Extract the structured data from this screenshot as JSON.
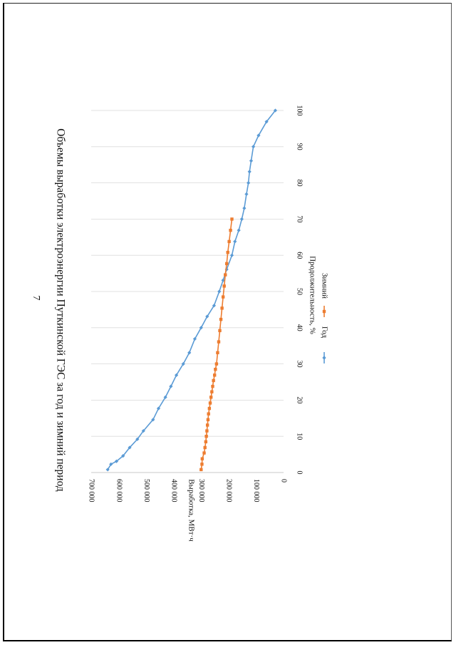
{
  "page_number": "7",
  "chart_data": {
    "type": "line",
    "title": "Объемы выработки электроэнергии Путкинской ГЭС за год и зимний период",
    "xlabel": "Продолжительность, %",
    "ylabel": "Выработка, МВт·ч",
    "xlim": [
      0,
      100
    ],
    "ylim": [
      0,
      700000
    ],
    "x_ticks": [
      "0",
      "10",
      "20",
      "30",
      "40",
      "50",
      "60",
      "70",
      "80",
      "90",
      "100"
    ],
    "y_ticks": [
      "0",
      "100 000",
      "200 000",
      "300 000",
      "400 000",
      "500 000",
      "600 000",
      "700 000"
    ],
    "grid": "vertical lines at x ticks",
    "legend_placement": "bottom",
    "orientation": "rotated 90° clockwise on page",
    "series": [
      {
        "name": "Год",
        "color": "#5B9BD5",
        "marker": "diamond",
        "x": [
          0.8,
          2.3,
          3.1,
          4.6,
          6.9,
          9.2,
          11.5,
          14.6,
          17.7,
          20.8,
          23.8,
          26.9,
          30.0,
          33.1,
          36.9,
          40.0,
          43.1,
          46.1,
          50.0,
          53.1,
          56.1,
          60.0,
          63.8,
          66.9,
          70.0,
          73.0,
          76.9,
          80.0,
          83.1,
          86.1,
          90.0,
          93.1,
          96.9,
          100
        ],
        "values": [
          640000,
          628000,
          608000,
          584000,
          560000,
          532000,
          510000,
          475000,
          455000,
          430000,
          410000,
          390000,
          365000,
          343000,
          323000,
          300000,
          278000,
          253000,
          234000,
          220000,
          207000,
          188000,
          177000,
          163000,
          152000,
          143000,
          135000,
          128000,
          124000,
          118000,
          110000,
          91000,
          62000,
          30000
        ]
      },
      {
        "name": "Зимний",
        "color": "#ED7D31",
        "marker": "square",
        "x": [
          0.8,
          2.3,
          3.8,
          5.4,
          6.9,
          8.5,
          10.0,
          11.5,
          13.1,
          14.6,
          16.2,
          17.7,
          19.2,
          20.8,
          22.3,
          23.8,
          25.4,
          26.9,
          28.5,
          30.0,
          33.1,
          36.1,
          39.2,
          42.3,
          45.4,
          48.5,
          51.5,
          54.6,
          57.7,
          60.8,
          63.8,
          66.9,
          70.0
        ],
        "values": [
          300000,
          297000,
          296000,
          289000,
          286000,
          283000,
          281000,
          279000,
          277000,
          275000,
          273000,
          270000,
          267000,
          264000,
          261000,
          258000,
          255000,
          251000,
          248000,
          244000,
          240000,
          236000,
          232000,
          228000,
          224000,
          220000,
          216000,
          212000,
          207000,
          203000,
          198000,
          193000,
          188000
        ]
      }
    ]
  }
}
